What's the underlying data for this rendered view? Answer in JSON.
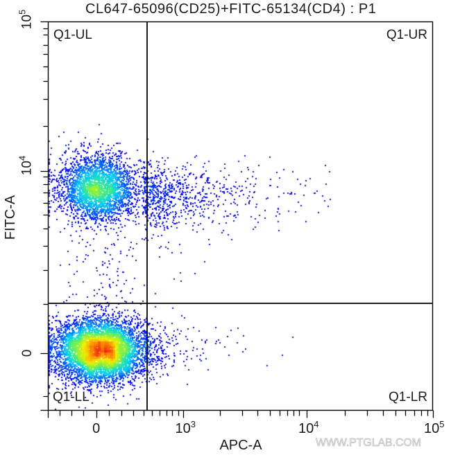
{
  "chart_data": {
    "type": "scatter",
    "subtype": "flow-cytometry-pseudocolor-dot-plot",
    "title": "CL647-65096(CD25)+FITC-65134(CD4) : P1",
    "xlabel": "APC-A",
    "ylabel": "FITC-A",
    "x_scale": "biexponential",
    "y_scale": "biexponential",
    "xlim": [
      -400,
      100000
    ],
    "ylim": [
      -1500,
      100000
    ],
    "grid": false,
    "legend": null,
    "x_axis": {
      "labels": [
        {
          "value": 0,
          "base": "0",
          "exp": "",
          "pos": 0.1256
        },
        {
          "value": 1000,
          "base": "10",
          "exp": "3",
          "pos": 0.3519
        },
        {
          "value": 10000,
          "base": "10",
          "exp": "4",
          "pos": 0.6726
        },
        {
          "value": 100000,
          "base": "10",
          "exp": "5",
          "pos": 1.0
        }
      ],
      "ticks": [
        {
          "v": -400,
          "p": 0.0,
          "major": true
        },
        {
          "v": -300,
          "p": 0.0306
        },
        {
          "v": -200,
          "p": 0.0607
        },
        {
          "v": -100,
          "p": 0.0919
        },
        {
          "v": 0,
          "p": 0.1256,
          "major": true
        },
        {
          "v": 100,
          "p": 0.158
        },
        {
          "v": 200,
          "p": 0.191
        },
        {
          "v": 300,
          "p": 0.2211
        },
        {
          "v": 400,
          "p": 0.2481
        },
        {
          "v": 500,
          "p": 0.2708
        },
        {
          "v": 600,
          "p": 0.2901
        },
        {
          "v": 700,
          "p": 0.3081
        },
        {
          "v": 800,
          "p": 0.3231
        },
        {
          "v": 900,
          "p": 0.3382
        },
        {
          "v": 1000,
          "p": 0.3519,
          "major": true
        },
        {
          "v": 2000,
          "p": 0.4474
        },
        {
          "v": 3000,
          "p": 0.505
        },
        {
          "v": 4000,
          "p": 0.5441
        },
        {
          "v": 5000,
          "p": 0.5771
        },
        {
          "v": 6000,
          "p": 0.6013
        },
        {
          "v": 7000,
          "p": 0.6216
        },
        {
          "v": 8000,
          "p": 0.6384
        },
        {
          "v": 9000,
          "p": 0.6517
        },
        {
          "v": 10000,
          "p": 0.6726,
          "major": true
        },
        {
          "v": 20000,
          "p": 0.7706
        },
        {
          "v": 30000,
          "p": 0.8288
        },
        {
          "v": 40000,
          "p": 0.8708
        },
        {
          "v": 50000,
          "p": 0.9027
        },
        {
          "v": 60000,
          "p": 0.9285
        },
        {
          "v": 70000,
          "p": 0.9508
        },
        {
          "v": 80000,
          "p": 0.9688
        },
        {
          "v": 90000,
          "p": 0.9856
        },
        {
          "v": 100000,
          "p": 1.0,
          "major": true
        }
      ]
    },
    "y_axis": {
      "labels": [
        {
          "value": 0,
          "base": "0",
          "exp": "",
          "pos": 0.1462
        },
        {
          "value": 10000,
          "base": "10",
          "exp": "4",
          "pos": 0.6155
        },
        {
          "value": 100000,
          "base": "10",
          "exp": "5",
          "pos": 1.0
        }
      ],
      "ticks": [
        {
          "v": -1500,
          "p": 0.0,
          "major": true
        },
        {
          "v": -1000,
          "p": 0.0362
        },
        {
          "v": 0,
          "p": 0.1462,
          "major": true
        },
        {
          "v": 1000,
          "p": 0.2722
        },
        {
          "v": 2000,
          "p": 0.3601
        },
        {
          "v": 3000,
          "p": 0.4225
        },
        {
          "v": 4000,
          "p": 0.467
        },
        {
          "v": 5000,
          "p": 0.5027
        },
        {
          "v": 6000,
          "p": 0.5324
        },
        {
          "v": 7000,
          "p": 0.5592
        },
        {
          "v": 8000,
          "p": 0.5811
        },
        {
          "v": 9000,
          "p": 0.6007
        },
        {
          "v": 10000,
          "p": 0.6155,
          "major": true
        },
        {
          "v": 20000,
          "p": 0.7314
        },
        {
          "v": 30000,
          "p": 0.7998
        },
        {
          "v": 40000,
          "p": 0.8472
        },
        {
          "v": 50000,
          "p": 0.8847
        },
        {
          "v": 60000,
          "p": 0.9157
        },
        {
          "v": 70000,
          "p": 0.9394
        },
        {
          "v": 80000,
          "p": 0.9661
        },
        {
          "v": 90000,
          "p": 0.9822
        },
        {
          "v": 100000,
          "p": 1.0,
          "major": true
        }
      ]
    },
    "gates": {
      "type": "quadrant",
      "name": "Q1",
      "x_threshold": 440,
      "y_threshold": 1000,
      "x_pos": 0.2577,
      "y_pos": 0.2745,
      "labels": {
        "UL": "Q1-UL",
        "UR": "Q1-UR",
        "LL": "Q1-LL",
        "LR": "Q1-LR"
      }
    },
    "colormap": {
      "type": "density-jet",
      "stops": [
        [
          0.0,
          "#1919be"
        ],
        [
          0.06,
          "#0000ff"
        ],
        [
          0.2,
          "#0064ff"
        ],
        [
          0.32,
          "#00c8ff"
        ],
        [
          0.45,
          "#28e6aa"
        ],
        [
          0.58,
          "#8cf03c"
        ],
        [
          0.72,
          "#f0f000"
        ],
        [
          0.86,
          "#ff8c00"
        ],
        [
          1.0,
          "#eb1e14"
        ]
      ]
    },
    "populations": [
      {
        "name": "CD4- CD25- (Q1-LL)",
        "quadrant": "LL",
        "dist": "gauss",
        "count": 6000,
        "cx": 0.1333,
        "cy": 0.155,
        "sx": 0.0595,
        "sy": 0.041,
        "approx_center": {
          "APC-A": 30,
          "FITC-A": 50
        }
      },
      {
        "name": "CD4+ CD25- (Q1-UL)",
        "quadrant": "UL",
        "dist": "gauss",
        "count": 3000,
        "cx": 0.128,
        "cy": 0.5704,
        "sx": 0.052,
        "sy": 0.043,
        "approx_center": {
          "APC-A": 0,
          "FITC-A": 7500
        }
      },
      {
        "name": "CD4+ CD25+ (Q1-UR)",
        "quadrant": "UR",
        "dist": "exp-x",
        "count": 750,
        "x0": 0.245,
        "scale_x": 0.125,
        "xmax": 0.74,
        "cy": 0.5526,
        "sy": 0.045,
        "approx_range": {
          "APC-A": [
            450,
            15000
          ],
          "FITC-A": [
            3000,
            20000
          ]
        }
      },
      {
        "name": "FITC-intermediate (Q1-UL lower)",
        "quadrant": "UL",
        "dist": "uniform-y",
        "count": 90,
        "cx": 0.147,
        "sx": 0.055,
        "ymin": 0.277,
        "ymax": 0.455
      },
      {
        "name": "CD4- CD25+ (Q1-LR)",
        "quadrant": "LR",
        "dist": "exp-x",
        "count": 160,
        "x0": 0.245,
        "scale_x": 0.08,
        "xmax": 0.74,
        "cy": 0.164,
        "sy": 0.033
      },
      {
        "name": "sparse (Q1-UR lower)",
        "quadrant": "UR",
        "dist": "uniform",
        "count": 10,
        "xmin": 0.26,
        "xmax": 0.42,
        "ymin": 0.29,
        "ymax": 0.44
      }
    ]
  },
  "watermark": "WWW.PTGLAB.COM"
}
